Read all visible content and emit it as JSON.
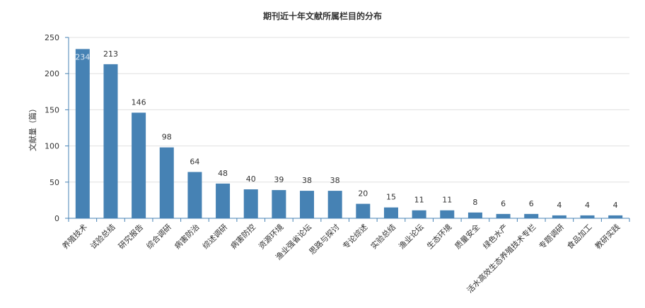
{
  "chart_data": {
    "type": "bar",
    "title": "期刊近十年文献所属栏目的分布",
    "ylabel": "文献量（篇）",
    "xlabel": "",
    "ylim": [
      0,
      250
    ],
    "yticks": [
      0,
      50,
      100,
      150,
      200,
      250
    ],
    "grid": true,
    "legend": "none",
    "color": "#4682b4",
    "categories": [
      "养殖技术",
      "试验总结",
      "研究报告",
      "综合调研",
      "病害防治",
      "综述调研",
      "病害防控",
      "资源环境",
      "渔业强省论坛",
      "思路与探讨",
      "专论综述",
      "实验总结",
      "渔业论坛",
      "生态环境",
      "质量安全",
      "绿色水产",
      "活水高效生态养殖技术专栏",
      "专题调研",
      "食品加工",
      "教研实践"
    ],
    "values": [
      234,
      213,
      146,
      98,
      64,
      48,
      40,
      39,
      38,
      38,
      20,
      15,
      11,
      11,
      8,
      6,
      6,
      4,
      4,
      4
    ]
  }
}
